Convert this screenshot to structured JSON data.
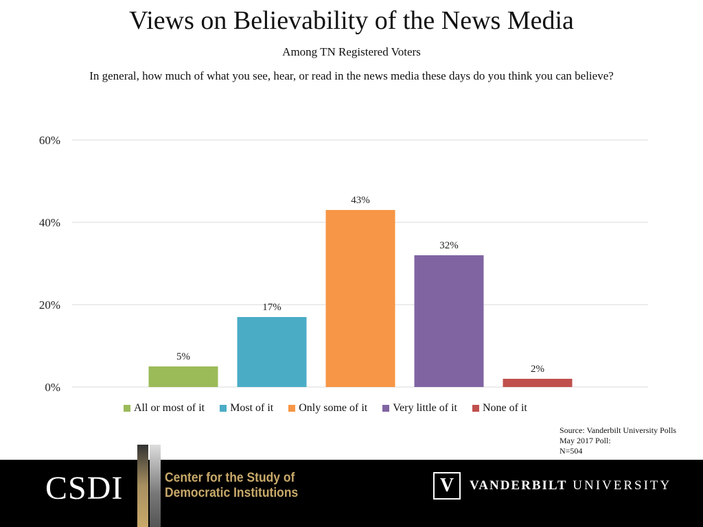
{
  "title": "Views on Believability of the News Media",
  "subtitle": "Among TN Registered Voters",
  "question": "In general, how much of what you see, hear, or read in the news media these days do you think you can believe?",
  "source": {
    "line1": "Source: Vanderbilt University Polls",
    "line2": "May 2017 Poll:",
    "line3": "N=504"
  },
  "footer": {
    "csdi": "CSDI",
    "center_line1": "Center for the Study of",
    "center_line2": "Democratic Institutions",
    "vu_mark": "V",
    "vu_bold": "VANDERBILT",
    "vu_rest": "UNIVERSITY"
  },
  "chart_data": {
    "type": "bar",
    "categories": [
      "All or most of it",
      "Most of it",
      "Only some of it",
      "Very little of it",
      "None of it"
    ],
    "values": [
      5,
      17,
      43,
      32,
      2
    ],
    "data_labels": [
      "5%",
      "17%",
      "43%",
      "32%",
      "2%"
    ],
    "colors": [
      "#9bbb59",
      "#4bacc6",
      "#f79646",
      "#8064a2",
      "#c0504d"
    ],
    "yticks": [
      "0%",
      "20%",
      "40%",
      "60%"
    ],
    "ylim": [
      0,
      60
    ],
    "grid": true,
    "legend_position": "bottom"
  }
}
